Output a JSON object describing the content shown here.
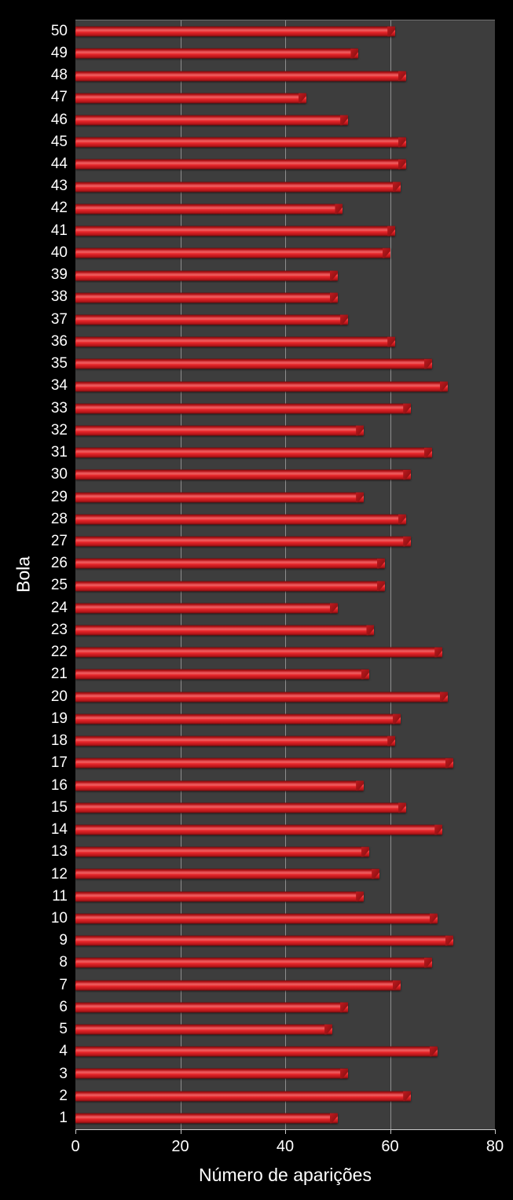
{
  "chart_data": {
    "type": "bar",
    "orientation": "horizontal",
    "title": "",
    "xlabel": "Número de aparições",
    "ylabel": "Bola",
    "xlim": [
      0,
      80
    ],
    "xticks": [
      "0",
      "20",
      "40",
      "60",
      "80"
    ],
    "xtick_values": [
      0,
      20,
      40,
      60,
      80
    ],
    "grid_tick_values": [
      20,
      40,
      60
    ],
    "grid": "vertical",
    "legend_position": "none",
    "category_order": "top-to-bottom",
    "categories": [
      "50",
      "49",
      "48",
      "47",
      "46",
      "45",
      "44",
      "43",
      "42",
      "41",
      "40",
      "39",
      "38",
      "37",
      "36",
      "35",
      "34",
      "33",
      "32",
      "31",
      "30",
      "29",
      "28",
      "27",
      "26",
      "25",
      "24",
      "23",
      "22",
      "21",
      "20",
      "19",
      "18",
      "17",
      "16",
      "15",
      "14",
      "13",
      "12",
      "11",
      "10",
      "9",
      "8",
      "7",
      "6",
      "5",
      "4",
      "3",
      "2",
      "1"
    ],
    "values": [
      61,
      54,
      63,
      44,
      52,
      63,
      63,
      62,
      51,
      61,
      60,
      50,
      50,
      52,
      61,
      68,
      71,
      64,
      55,
      68,
      64,
      55,
      63,
      64,
      59,
      59,
      50,
      57,
      70,
      56,
      71,
      62,
      61,
      72,
      55,
      63,
      70,
      56,
      58,
      55,
      69,
      72,
      68,
      62,
      52,
      49,
      69,
      52,
      64,
      50
    ],
    "colors": {
      "bar": "#d92025",
      "bar_dark_edge": "#6f0d0f",
      "plot_background": "#3d3d3d",
      "page_background": "#000000",
      "text": "#ffffff",
      "gridline": "#a8a8a8",
      "axis_line": "#c9c9c9"
    }
  }
}
